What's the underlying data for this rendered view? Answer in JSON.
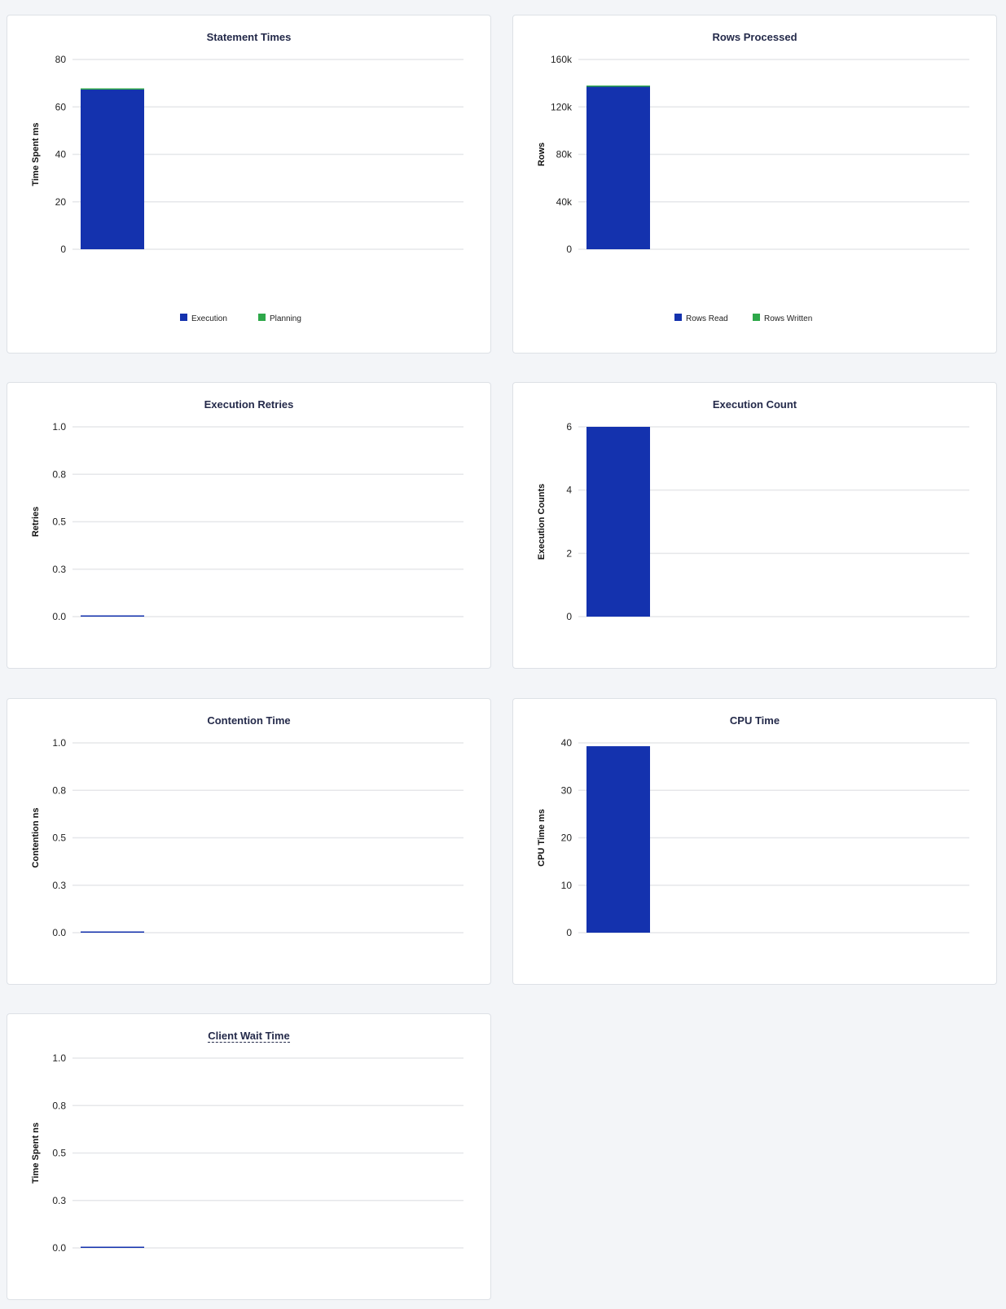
{
  "colors": {
    "primary": "#1432ae",
    "secondary": "#2ea84a",
    "grid": "#e6e7ea",
    "background": "#f3f5f8"
  },
  "chart_data": [
    {
      "type": "bar",
      "stacked": true,
      "title": "Statement Times",
      "ylabel": "Time Spent ms",
      "ylim": [
        0,
        80
      ],
      "yticks": [
        "0",
        "20",
        "40",
        "60",
        "80"
      ],
      "yvals": [
        0,
        20,
        40,
        60,
        80
      ],
      "series": [
        {
          "name": "Execution",
          "values": [
            67.3
          ]
        },
        {
          "name": "Planning",
          "values": [
            0.5
          ]
        }
      ],
      "legend": "bottom"
    },
    {
      "type": "bar",
      "stacked": true,
      "title": "Rows Processed",
      "ylabel": "Rows",
      "ylim": [
        0,
        160000
      ],
      "yticks": [
        "0",
        "40k",
        "80k",
        "120k",
        "160k"
      ],
      "yvals": [
        0,
        40000,
        80000,
        120000,
        160000
      ],
      "series": [
        {
          "name": "Rows Read",
          "values": [
            137000
          ]
        },
        {
          "name": "Rows Written",
          "values": [
            0
          ]
        }
      ],
      "legend": "bottom"
    },
    {
      "type": "bar",
      "title": "Execution Retries",
      "ylabel": "Retries",
      "ylim": [
        0,
        1
      ],
      "yticks": [
        "0.0",
        "0.3",
        "0.5",
        "0.8",
        "1.0"
      ],
      "yvals": [
        0,
        0.25,
        0.5,
        0.75,
        1
      ],
      "series": [
        {
          "values": [
            0
          ]
        }
      ]
    },
    {
      "type": "bar",
      "title": "Execution Count",
      "ylabel": "Execution Counts",
      "ylim": [
        0,
        6
      ],
      "yticks": [
        "0",
        "2",
        "4",
        "6"
      ],
      "yvals": [
        0,
        2,
        4,
        6
      ],
      "series": [
        {
          "values": [
            6
          ]
        }
      ]
    },
    {
      "type": "bar",
      "title": "Contention Time",
      "ylabel": "Contention ns",
      "ylim": [
        0,
        1
      ],
      "yticks": [
        "0.0",
        "0.3",
        "0.5",
        "0.8",
        "1.0"
      ],
      "yvals": [
        0,
        0.25,
        0.5,
        0.75,
        1
      ],
      "series": [
        {
          "values": [
            0
          ]
        }
      ]
    },
    {
      "type": "bar",
      "title": "CPU Time",
      "ylabel": "CPU Time ms",
      "ylim": [
        0,
        40
      ],
      "yticks": [
        "0",
        "10",
        "20",
        "30",
        "40"
      ],
      "yvals": [
        0,
        10,
        20,
        30,
        40
      ],
      "series": [
        {
          "values": [
            39.3
          ]
        }
      ]
    },
    {
      "type": "bar",
      "title": "Client Wait Time",
      "ylabel": "Time Spent ns",
      "ylim": [
        0,
        1
      ],
      "yticks": [
        "0.0",
        "0.3",
        "0.5",
        "0.8",
        "1.0"
      ],
      "yvals": [
        0,
        0.25,
        0.5,
        0.75,
        1
      ],
      "series": [
        {
          "values": [
            0
          ]
        }
      ]
    }
  ]
}
